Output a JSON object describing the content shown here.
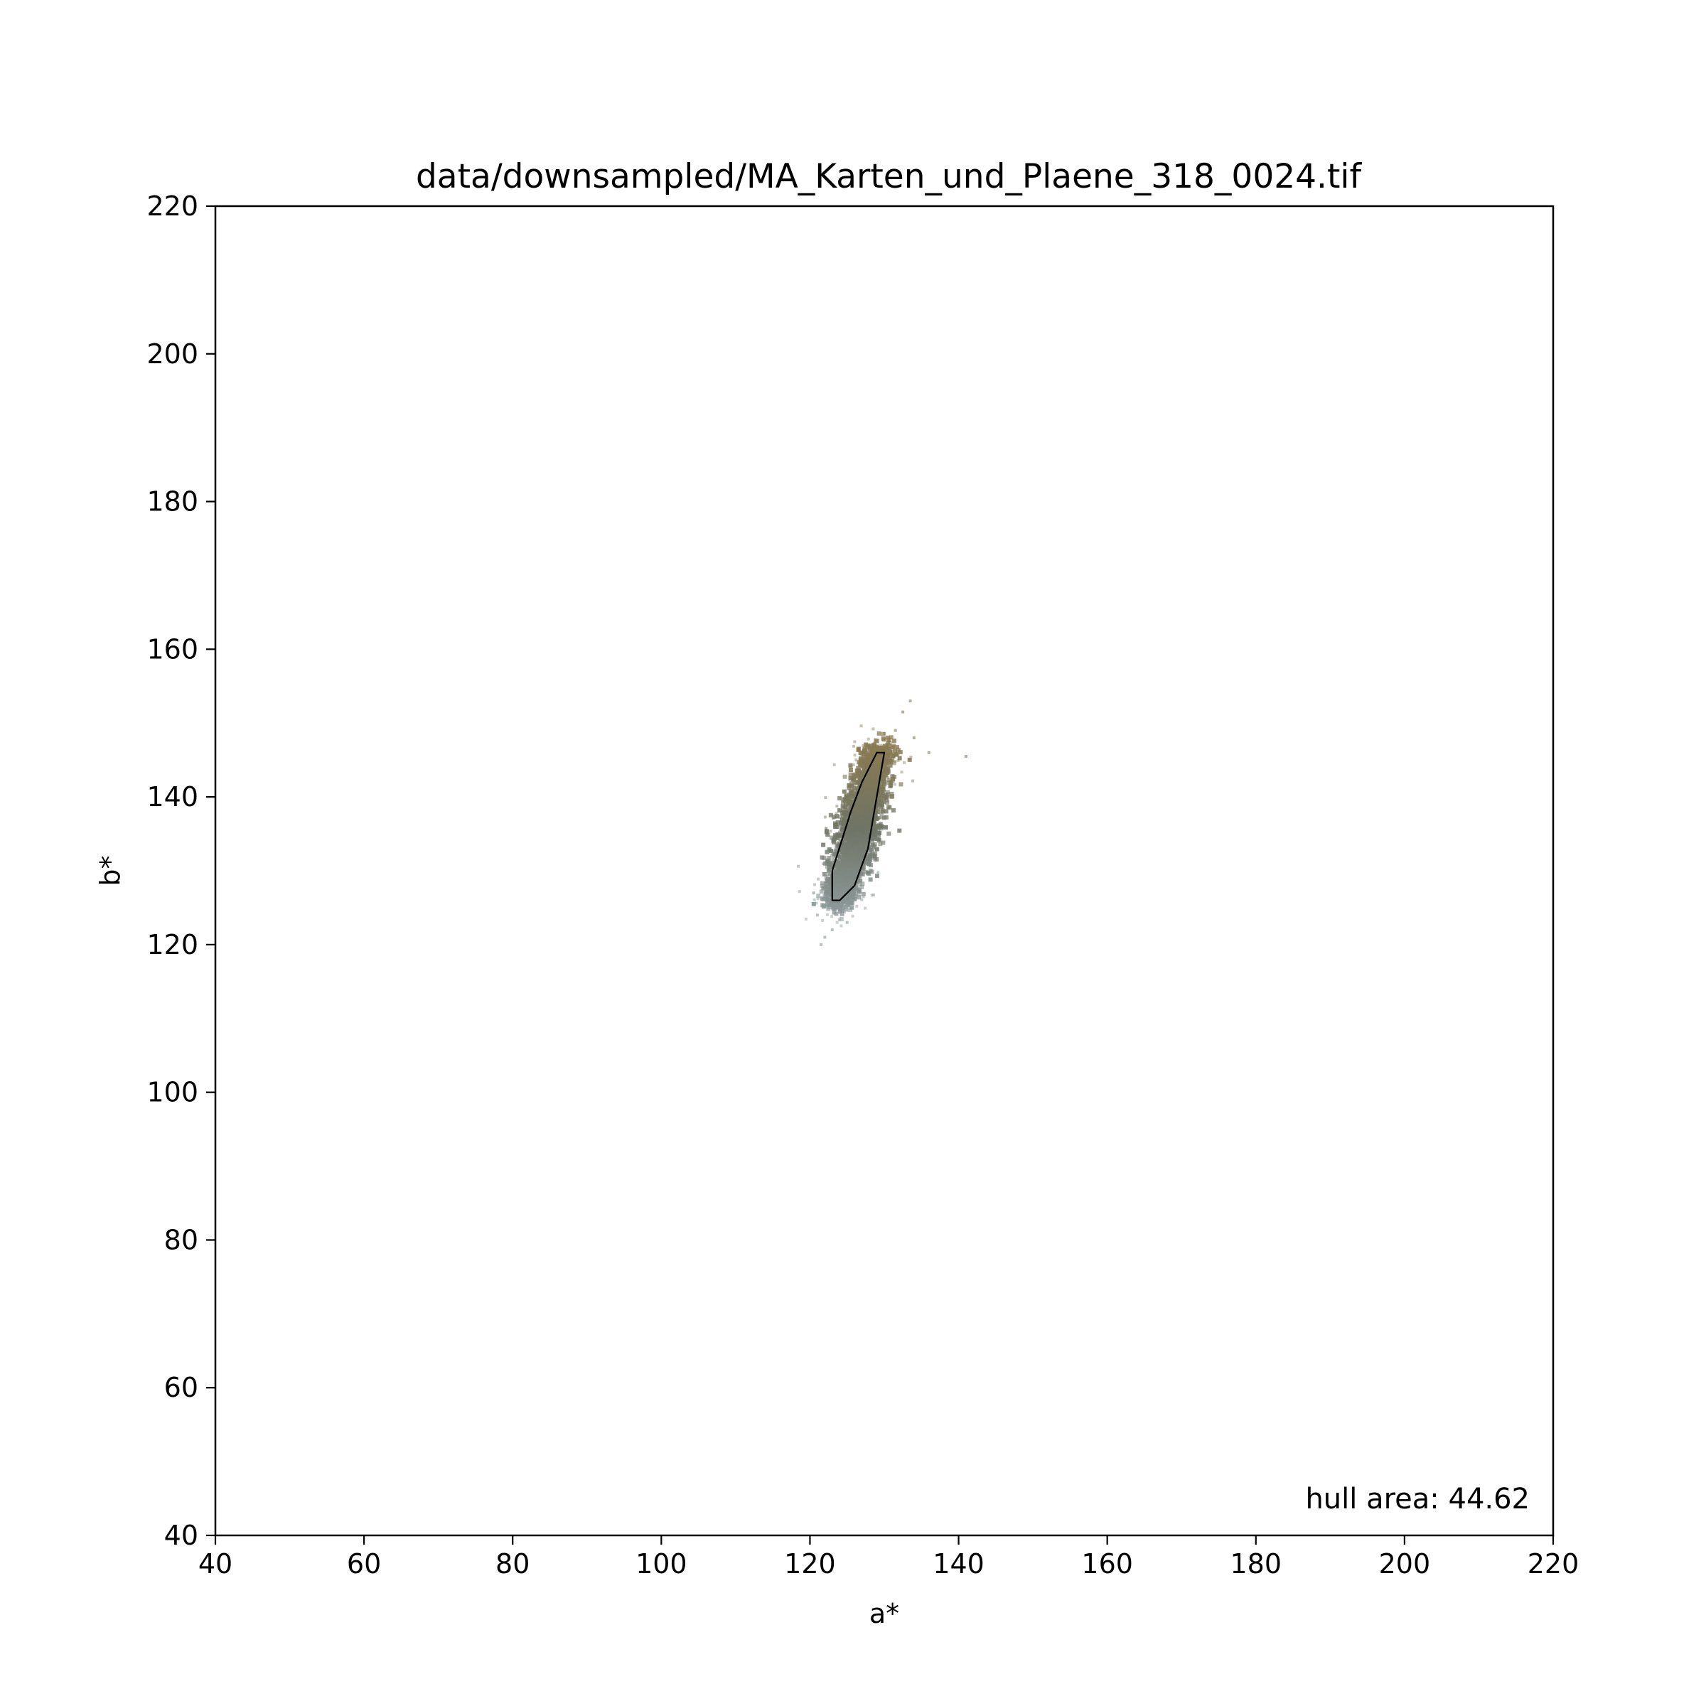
{
  "chart_data": {
    "type": "scatter",
    "title": "data/downsampled/MA_Karten_und_Plaene_318_0024.tif",
    "xlabel": "a*",
    "ylabel": "b*",
    "xlim": [
      40,
      220
    ],
    "ylim": [
      40,
      220
    ],
    "xticks": [
      "40",
      "60",
      "80",
      "100",
      "120",
      "140",
      "160",
      "180",
      "200",
      "220"
    ],
    "yticks": [
      "40",
      "60",
      "80",
      "100",
      "120",
      "140",
      "160",
      "180",
      "200",
      "220"
    ],
    "grid": false,
    "annotation": "hull area: 44.62",
    "point_colors": {
      "low": "#8e9a9c",
      "mid": "#6f7566",
      "high": "#8a7a52"
    },
    "hull_color": "#000000",
    "hull": [
      [
        123,
        126
      ],
      [
        124,
        126
      ],
      [
        126,
        128
      ],
      [
        127.8,
        133
      ],
      [
        130,
        146
      ],
      [
        129,
        146
      ],
      [
        127,
        142
      ],
      [
        125.5,
        138
      ],
      [
        123,
        130
      ]
    ],
    "outliers": [
      [
        133.5,
        153
      ],
      [
        132.5,
        151.5
      ],
      [
        136,
        146
      ],
      [
        141,
        145.5
      ],
      [
        134,
        148
      ],
      [
        122,
        121
      ],
      [
        121.5,
        120
      ],
      [
        123,
        122
      ],
      [
        125,
        123
      ],
      [
        121,
        124
      ],
      [
        131.5,
        149
      ],
      [
        120.5,
        127
      ]
    ]
  }
}
